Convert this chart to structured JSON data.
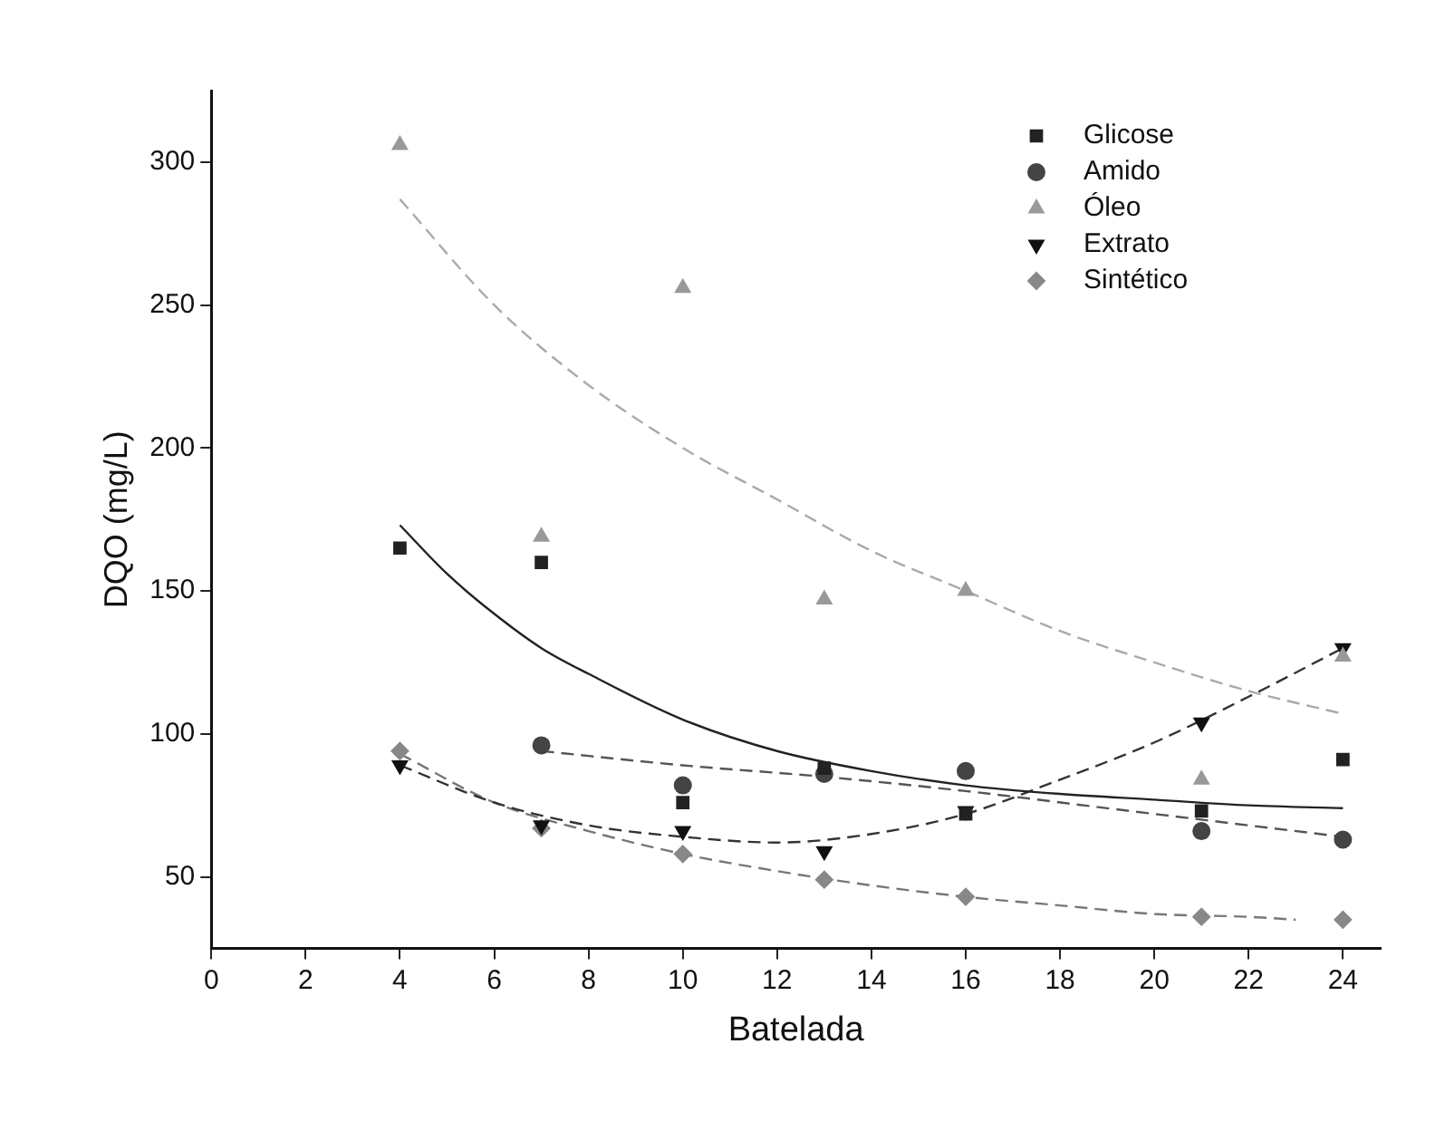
{
  "chart_data": {
    "type": "scatter",
    "xlabel": "Batelada",
    "ylabel": "DQO (mg/L)",
    "xlim": [
      0,
      24.8
    ],
    "xticks": [
      0,
      2,
      4,
      6,
      8,
      10,
      12,
      14,
      16,
      18,
      20,
      22,
      24
    ],
    "ylim": [
      25,
      325
    ],
    "yticks": [
      50,
      100,
      150,
      200,
      250,
      300
    ],
    "grid": false,
    "legend": "top right",
    "series": [
      {
        "name": "Glicose",
        "color": "#222222",
        "marker": "square",
        "x": [
          4,
          7,
          10,
          13,
          16,
          21,
          24
        ],
        "values": [
          165,
          160,
          76,
          88,
          72,
          73,
          91
        ]
      },
      {
        "name": "Amido",
        "color": "#444444",
        "marker": "circle",
        "x": [
          7,
          10,
          13,
          16,
          21,
          24
        ],
        "values": [
          96,
          82,
          86,
          87,
          66,
          63
        ]
      },
      {
        "name": "Óleo",
        "color": "#999999",
        "marker": "triangle",
        "x": [
          4,
          7,
          10,
          13,
          16,
          21,
          24
        ],
        "values": [
          306,
          169,
          256,
          147,
          150,
          84,
          127
        ]
      },
      {
        "name": "Extrato",
        "color": "#111111",
        "marker": "triangle-down",
        "x": [
          4,
          7,
          10,
          13,
          16,
          21,
          24
        ],
        "values": [
          89,
          68,
          66,
          59,
          73,
          104,
          130
        ]
      },
      {
        "name": "Sintético",
        "color": "#888888",
        "marker": "diamond",
        "x": [
          4,
          7,
          10,
          13,
          16,
          21,
          24
        ],
        "values": [
          94,
          67,
          58,
          49,
          43,
          36,
          35
        ]
      },
      {
        "type": "line",
        "color": "#222222",
        "line_style": "solid",
        "x": [
          4,
          5,
          6,
          7,
          8,
          10,
          12,
          14,
          16,
          18,
          20,
          22,
          24
        ],
        "values": [
          173,
          156,
          142,
          130,
          121,
          105,
          94,
          87,
          82,
          79,
          77,
          75,
          74
        ]
      },
      {
        "type": "line",
        "color": "#aaaaaa",
        "line_style": "dashed",
        "x": [
          4,
          6,
          8,
          10,
          12,
          14,
          16,
          18,
          20,
          22,
          24
        ],
        "values": [
          287,
          250,
          222,
          200,
          182,
          164,
          150,
          136,
          125,
          115,
          107
        ]
      },
      {
        "type": "line",
        "color": "#555555",
        "line_style": "dashed",
        "x": [
          7,
          10,
          13,
          16,
          19,
          22,
          24
        ],
        "values": [
          94,
          89,
          85,
          80,
          74,
          68,
          64
        ]
      },
      {
        "type": "line",
        "color": "#333333",
        "line_style": "dashed",
        "x": [
          4,
          6,
          8,
          10,
          12,
          14,
          16,
          18,
          20,
          22,
          24
        ],
        "values": [
          89,
          76,
          68,
          64,
          62,
          65,
          72,
          84,
          97,
          113,
          130
        ]
      },
      {
        "type": "line",
        "color": "#777777",
        "line_style": "dashed",
        "x": [
          4,
          6,
          8,
          10,
          12,
          14,
          16,
          18,
          20,
          22,
          23
        ],
        "values": [
          93,
          76,
          66,
          58,
          52,
          47,
          43,
          40,
          37,
          36,
          35
        ]
      }
    ]
  }
}
